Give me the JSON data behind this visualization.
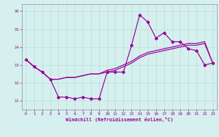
{
  "xlabel": "Windchill (Refroidissement éolien,°C)",
  "x": [
    0,
    1,
    2,
    3,
    4,
    5,
    6,
    7,
    8,
    9,
    10,
    11,
    12,
    13,
    14,
    15,
    16,
    17,
    18,
    19,
    20,
    21,
    22,
    23
  ],
  "line1": [
    13.3,
    12.9,
    12.6,
    12.2,
    11.2,
    11.2,
    11.1,
    11.2,
    11.1,
    11.1,
    12.6,
    12.6,
    12.6,
    14.1,
    15.8,
    15.4,
    14.5,
    14.8,
    14.3,
    14.3,
    13.9,
    13.8,
    13.0,
    13.1
  ],
  "line2": [
    13.3,
    12.9,
    12.6,
    12.2,
    12.2,
    12.3,
    12.3,
    12.4,
    12.5,
    12.5,
    12.6,
    12.7,
    12.9,
    13.1,
    13.4,
    13.6,
    13.7,
    13.8,
    13.9,
    14.0,
    14.1,
    14.1,
    14.2,
    13.1
  ],
  "line3": [
    13.3,
    12.9,
    12.6,
    12.2,
    12.2,
    12.3,
    12.3,
    12.4,
    12.5,
    12.5,
    12.7,
    12.8,
    13.0,
    13.2,
    13.5,
    13.7,
    13.8,
    13.9,
    14.0,
    14.1,
    14.2,
    14.2,
    14.3,
    13.1
  ],
  "line_color": "#990099",
  "bg_color": "#d5f0ee",
  "grid_color": "#b8ddd8",
  "ylim": [
    10.5,
    16.4
  ],
  "xlim": [
    -0.5,
    23.5
  ],
  "yticks": [
    11,
    12,
    13,
    14,
    15,
    16
  ],
  "xticks": [
    0,
    1,
    2,
    3,
    4,
    5,
    6,
    7,
    8,
    9,
    10,
    11,
    12,
    13,
    14,
    15,
    16,
    17,
    18,
    19,
    20,
    21,
    22,
    23
  ]
}
